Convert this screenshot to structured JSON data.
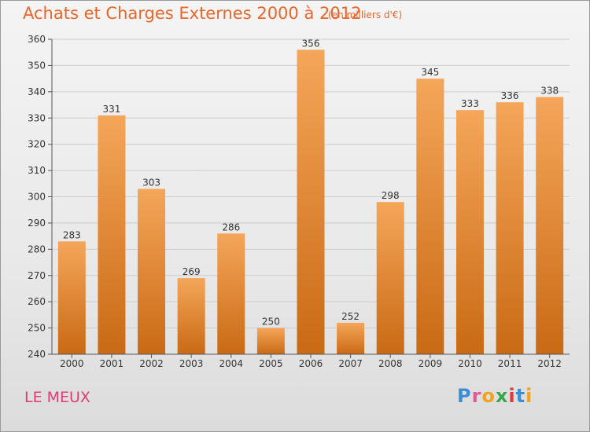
{
  "title": "Achats et Charges Externes 2000 à 2012",
  "subtitle": "(en milliers d'€)",
  "commune": "LE MEUX",
  "logo": {
    "text": "Proxiti",
    "letters": [
      {
        "ch": "P",
        "color": "#3a8fd6"
      },
      {
        "ch": "r",
        "color": "#e05a9a"
      },
      {
        "ch": "o",
        "color": "#f2a21b"
      },
      {
        "ch": "x",
        "color": "#3aa84a"
      },
      {
        "ch": "i",
        "color": "#e23a3a"
      },
      {
        "ch": "t",
        "color": "#3a8fd6"
      },
      {
        "ch": "i",
        "color": "#f2a21b"
      }
    ]
  },
  "colors": {
    "title": "#e8662a",
    "commune": "#e03a78",
    "bar_top": "#f5a65a",
    "bar_bottom": "#c96a14",
    "axis": "#555555",
    "grid": "#cccccc"
  },
  "chart_data": {
    "type": "bar",
    "categories": [
      "2000",
      "2001",
      "2002",
      "2003",
      "2004",
      "2005",
      "2006",
      "2007",
      "2008",
      "2009",
      "2010",
      "2011",
      "2012"
    ],
    "values": [
      283,
      331,
      303,
      269,
      286,
      250,
      356,
      252,
      298,
      345,
      333,
      336,
      338
    ],
    "ylim": [
      240,
      360
    ],
    "yticks": [
      240,
      250,
      260,
      270,
      280,
      290,
      300,
      310,
      320,
      330,
      340,
      350,
      360
    ],
    "grid": true,
    "data_labels": true
  }
}
